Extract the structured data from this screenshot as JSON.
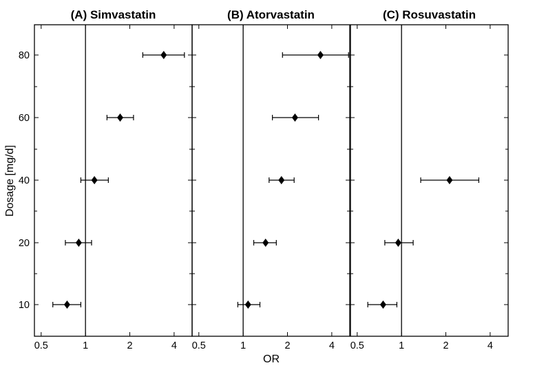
{
  "chart_data": {
    "type": "scatter",
    "shared_y": {
      "label": "Dosage [mg/d]",
      "ticks": [
        10,
        20,
        40,
        60,
        80
      ],
      "tick_labels": [
        "10",
        "20",
        "40",
        "60",
        "80"
      ]
    },
    "shared_x": {
      "label": "OR",
      "scale": "log",
      "ticks": [
        0.5,
        1,
        2,
        4
      ],
      "tick_labels": [
        "0.5",
        "1",
        "2",
        "4"
      ],
      "xlim": [
        0.45,
        5.3
      ],
      "reference_line": 1
    },
    "panels": [
      {
        "title": "(A) Simvastatin",
        "points": [
          {
            "dose": 10,
            "or": 0.75,
            "lo": 0.6,
            "hi": 0.93
          },
          {
            "dose": 20,
            "or": 0.9,
            "lo": 0.73,
            "hi": 1.1
          },
          {
            "dose": 40,
            "or": 1.15,
            "lo": 0.93,
            "hi": 1.43
          },
          {
            "dose": 60,
            "or": 1.72,
            "lo": 1.4,
            "hi": 2.12
          },
          {
            "dose": 80,
            "or": 3.4,
            "lo": 2.45,
            "hi": 4.7
          }
        ]
      },
      {
        "title": "(B) Atorvastatin",
        "points": [
          {
            "dose": 10,
            "or": 1.08,
            "lo": 0.92,
            "hi": 1.3
          },
          {
            "dose": 20,
            "or": 1.42,
            "lo": 1.18,
            "hi": 1.68
          },
          {
            "dose": 40,
            "or": 1.82,
            "lo": 1.5,
            "hi": 2.22
          },
          {
            "dose": 60,
            "or": 2.25,
            "lo": 1.58,
            "hi": 3.25
          },
          {
            "dose": 80,
            "or": 3.35,
            "lo": 1.85,
            "hi": 5.2
          }
        ]
      },
      {
        "title": "(C) Rosuvastatin",
        "points": [
          {
            "dose": 10,
            "or": 0.75,
            "lo": 0.59,
            "hi": 0.93
          },
          {
            "dose": 20,
            "or": 0.95,
            "lo": 0.77,
            "hi": 1.2
          },
          {
            "dose": 40,
            "or": 2.12,
            "lo": 1.35,
            "hi": 3.35
          }
        ]
      }
    ]
  }
}
